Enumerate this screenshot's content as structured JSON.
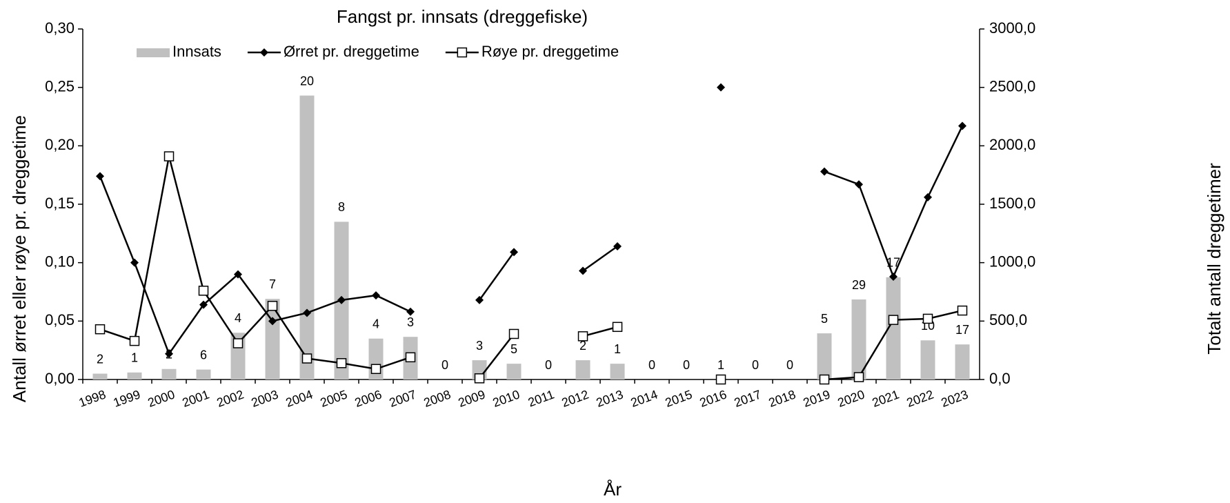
{
  "chart_data": {
    "type": "bar_line",
    "title": "Fangst pr. innsats (dreggefiske)",
    "xlabel": "År",
    "ylabel": "Antall ørret eller røye pr. dreggetime",
    "y2label": "Totalt antall dreggetimer",
    "categories": [
      "1998",
      "1999",
      "2000",
      "2001",
      "2002",
      "2003",
      "2004",
      "2005",
      "2006",
      "2007",
      "2008",
      "2009",
      "2010",
      "2011",
      "2012",
      "2013",
      "2014",
      "2015",
      "2016",
      "2017",
      "2018",
      "2019",
      "2020",
      "2021",
      "2022",
      "2023"
    ],
    "ylim": [
      0,
      0.3
    ],
    "yticks": [
      {
        "value": 0,
        "label": "0,00"
      },
      {
        "value": 0.05,
        "label": "0,05"
      },
      {
        "value": 0.1,
        "label": "0,10"
      },
      {
        "value": 0.15,
        "label": "0,15"
      },
      {
        "value": 0.2,
        "label": "0,20"
      },
      {
        "value": 0.25,
        "label": "0,25"
      },
      {
        "value": 0.3,
        "label": "0,30"
      }
    ],
    "y2lim": [
      0,
      3000
    ],
    "y2ticks": [
      {
        "value": 0,
        "label": "0,0"
      },
      {
        "value": 500,
        "label": "500,0"
      },
      {
        "value": 1000,
        "label": "1000,0"
      },
      {
        "value": 1500,
        "label": "1500,0"
      },
      {
        "value": 2000,
        "label": "2000,0"
      },
      {
        "value": 2500,
        "label": "2500,0"
      },
      {
        "value": 3000,
        "label": "3000,0"
      }
    ],
    "legend": "top",
    "series": [
      {
        "name": "Innsats",
        "kind": "bar",
        "axis": "y2",
        "color": "#c0c0c0",
        "values": [
          50,
          60,
          90,
          85,
          400,
          690,
          2430,
          1350,
          350,
          365,
          0,
          165,
          135,
          0,
          165,
          135,
          0,
          0,
          0,
          0,
          0,
          395,
          685,
          875,
          335,
          300
        ],
        "annotations": [
          "2",
          "1",
          "2",
          "6",
          "4",
          "7",
          "20",
          "8",
          "4",
          "3",
          "0",
          "3",
          "5",
          "0",
          "2",
          "1",
          "0",
          "0",
          "1",
          "0",
          "0",
          "5",
          "29",
          "17",
          "10",
          "17"
        ]
      },
      {
        "name": "Ørret pr. dreggetime",
        "kind": "line",
        "marker": "diamond",
        "color": "#000000",
        "values": [
          0.174,
          0.1,
          0.022,
          0.064,
          0.09,
          0.05,
          0.057,
          0.068,
          0.072,
          0.058,
          null,
          0.068,
          0.109,
          null,
          0.093,
          0.114,
          null,
          null,
          0.25,
          null,
          null,
          0.178,
          0.167,
          0.088,
          0.156,
          0.217
        ]
      },
      {
        "name": "Røye pr. dreggetime",
        "kind": "line",
        "marker": "square",
        "color": "#000000",
        "values": [
          0.043,
          0.033,
          0.191,
          0.076,
          0.031,
          0.063,
          0.018,
          0.014,
          0.009,
          0.019,
          null,
          0.001,
          0.039,
          null,
          0.037,
          0.045,
          null,
          null,
          0.0,
          null,
          null,
          0.0,
          0.002,
          0.051,
          0.052,
          0.059
        ]
      }
    ]
  }
}
